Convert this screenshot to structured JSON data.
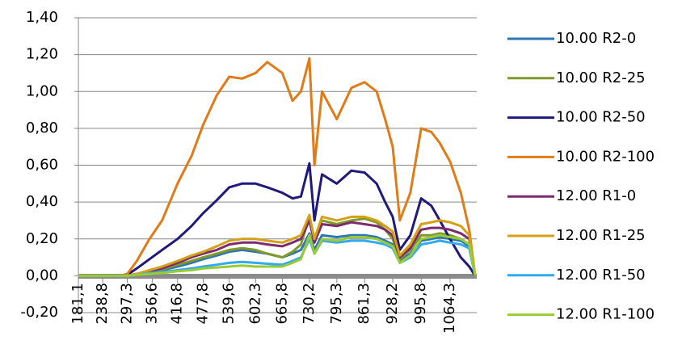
{
  "chart_data": {
    "type": "line",
    "x": [
      181.1,
      240,
      280,
      297.3,
      320,
      350,
      380,
      416.8,
      450,
      477.8,
      510,
      539.6,
      570,
      602.3,
      630,
      665.8,
      690,
      710,
      730.2,
      742,
      760,
      795.3,
      830,
      861.3,
      890,
      910,
      928.2,
      945,
      970,
      995.8,
      1020,
      1040,
      1064.3,
      1090,
      1110,
      1124
    ],
    "series": [
      {
        "name": "10.00 R2-0",
        "color": "#2e75b6",
        "values": [
          0,
          0,
          0,
          0,
          0.01,
          0.02,
          0.03,
          0.05,
          0.07,
          0.09,
          0.11,
          0.13,
          0.14,
          0.13,
          0.12,
          0.1,
          0.12,
          0.14,
          0.23,
          0.14,
          0.22,
          0.21,
          0.22,
          0.22,
          0.21,
          0.19,
          0.17,
          0.08,
          0.12,
          0.19,
          0.2,
          0.21,
          0.2,
          0.19,
          0.16,
          0
        ]
      },
      {
        "name": "10.00 R2-25",
        "color": "#7f9a2a",
        "values": [
          0,
          0,
          0,
          0,
          0.01,
          0.02,
          0.035,
          0.06,
          0.08,
          0.1,
          0.12,
          0.14,
          0.15,
          0.14,
          0.12,
          0.1,
          0.13,
          0.17,
          0.32,
          0.18,
          0.3,
          0.28,
          0.3,
          0.31,
          0.29,
          0.25,
          0.2,
          0.09,
          0.14,
          0.22,
          0.22,
          0.23,
          0.22,
          0.2,
          0.17,
          0
        ]
      },
      {
        "name": "10.00 R2-50",
        "color": "#1f1a7a",
        "values": [
          0,
          0,
          0,
          0.005,
          0.04,
          0.09,
          0.14,
          0.2,
          0.27,
          0.34,
          0.41,
          0.48,
          0.5,
          0.5,
          0.48,
          0.45,
          0.42,
          0.43,
          0.61,
          0.3,
          0.55,
          0.5,
          0.57,
          0.56,
          0.5,
          0.4,
          0.32,
          0.14,
          0.22,
          0.42,
          0.38,
          0.3,
          0.2,
          0.1,
          0.05,
          0
        ]
      },
      {
        "name": "10.00 R2-100",
        "color": "#e07b1a",
        "values": [
          0,
          0,
          0,
          0.01,
          0.08,
          0.2,
          0.3,
          0.5,
          0.65,
          0.82,
          0.98,
          1.08,
          1.07,
          1.1,
          1.16,
          1.1,
          0.95,
          1.0,
          1.18,
          0.6,
          1.0,
          0.85,
          1.02,
          1.05,
          1.0,
          0.85,
          0.7,
          0.3,
          0.45,
          0.8,
          0.78,
          0.72,
          0.62,
          0.45,
          0.25,
          0
        ]
      },
      {
        "name": "12.00 R1-0",
        "color": "#7b2c6e",
        "values": [
          0,
          0,
          0,
          0,
          0.01,
          0.025,
          0.04,
          0.07,
          0.1,
          0.12,
          0.14,
          0.17,
          0.18,
          0.18,
          0.17,
          0.16,
          0.18,
          0.2,
          0.3,
          0.18,
          0.28,
          0.27,
          0.29,
          0.28,
          0.27,
          0.25,
          0.22,
          0.1,
          0.15,
          0.25,
          0.26,
          0.26,
          0.25,
          0.23,
          0.2,
          0
        ]
      },
      {
        "name": "12.00 R1-25",
        "color": "#d4a017",
        "values": [
          0,
          0,
          0,
          0,
          0.01,
          0.03,
          0.05,
          0.08,
          0.11,
          0.13,
          0.16,
          0.19,
          0.2,
          0.2,
          0.19,
          0.18,
          0.2,
          0.22,
          0.33,
          0.2,
          0.32,
          0.3,
          0.32,
          0.32,
          0.3,
          0.27,
          0.24,
          0.11,
          0.17,
          0.28,
          0.29,
          0.3,
          0.29,
          0.27,
          0.22,
          0
        ]
      },
      {
        "name": "12.00 R1-50",
        "color": "#33a9f0",
        "values": [
          0,
          0,
          0,
          0,
          0.005,
          0.015,
          0.02,
          0.03,
          0.04,
          0.05,
          0.06,
          0.07,
          0.075,
          0.07,
          0.065,
          0.06,
          0.08,
          0.1,
          0.2,
          0.12,
          0.19,
          0.18,
          0.19,
          0.19,
          0.18,
          0.17,
          0.15,
          0.07,
          0.1,
          0.17,
          0.18,
          0.19,
          0.18,
          0.17,
          0.15,
          0
        ]
      },
      {
        "name": "12.00 R1-100",
        "color": "#99cc33",
        "values": [
          0,
          0,
          0,
          0,
          0.005,
          0.01,
          0.015,
          0.025,
          0.03,
          0.04,
          0.045,
          0.05,
          0.055,
          0.05,
          0.05,
          0.05,
          0.07,
          0.09,
          0.22,
          0.12,
          0.2,
          0.19,
          0.21,
          0.21,
          0.2,
          0.18,
          0.16,
          0.07,
          0.11,
          0.2,
          0.21,
          0.22,
          0.21,
          0.2,
          0.17,
          0
        ]
      }
    ],
    "xlim": [
      181.1,
      1124
    ],
    "xticks": [
      {
        "value": 181.1,
        "label": "181,1"
      },
      {
        "value": 238.8,
        "label": "238,8"
      },
      {
        "value": 297.3,
        "label": "297,3"
      },
      {
        "value": 356.6,
        "label": "356,6"
      },
      {
        "value": 416.8,
        "label": "416,8"
      },
      {
        "value": 477.8,
        "label": "477,8"
      },
      {
        "value": 539.6,
        "label": "539,6"
      },
      {
        "value": 602.3,
        "label": "602,3"
      },
      {
        "value": 665.8,
        "label": "665,8"
      },
      {
        "value": 730.2,
        "label": "730,2"
      },
      {
        "value": 795.3,
        "label": "795,3"
      },
      {
        "value": 861.3,
        "label": "861,3"
      },
      {
        "value": 928.2,
        "label": "928,2"
      },
      {
        "value": 995.8,
        "label": "995,8"
      },
      {
        "value": 1064.3,
        "label": "1064,3"
      }
    ],
    "ylim": [
      -0.2,
      1.4
    ],
    "yticks": [
      {
        "value": -0.2,
        "label": "-0,20"
      },
      {
        "value": 0,
        "label": "0,00"
      },
      {
        "value": 0.2,
        "label": "0,20"
      },
      {
        "value": 0.4,
        "label": "0,40"
      },
      {
        "value": 0.6,
        "label": "0,60"
      },
      {
        "value": 0.8,
        "label": "0,80"
      },
      {
        "value": 1.0,
        "label": "1,00"
      },
      {
        "value": 1.2,
        "label": "1,20"
      },
      {
        "value": 1.4,
        "label": "1,40"
      }
    ],
    "grid": true,
    "legend": "right"
  }
}
